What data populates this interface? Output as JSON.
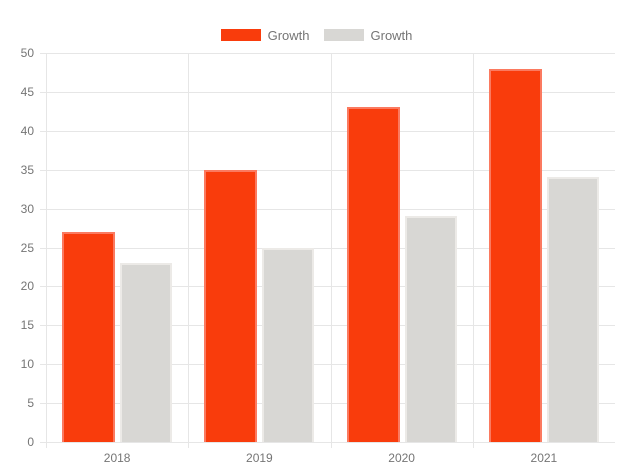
{
  "chart_data": {
    "type": "bar",
    "title": "",
    "xlabel": "",
    "ylabel": "",
    "categories": [
      "2018",
      "2019",
      "2020",
      "2021"
    ],
    "series": [
      {
        "name": "Growth",
        "color": "#f93c0c",
        "border_color": "#fb7a60",
        "values": [
          27,
          35,
          43,
          48
        ]
      },
      {
        "name": "Growth",
        "color": "#d8d7d4",
        "border_color": "#eceae7",
        "values": [
          23,
          25,
          29,
          34
        ]
      }
    ],
    "ylim": [
      0,
      50
    ],
    "y_ticks": [
      0,
      5,
      10,
      15,
      20,
      25,
      30,
      35,
      40,
      45,
      50
    ],
    "grid": true,
    "legend_position": "top",
    "colors": {
      "grid_line": "#e6e6e6",
      "tick_text": "#757575",
      "background": "#ffffff"
    }
  }
}
